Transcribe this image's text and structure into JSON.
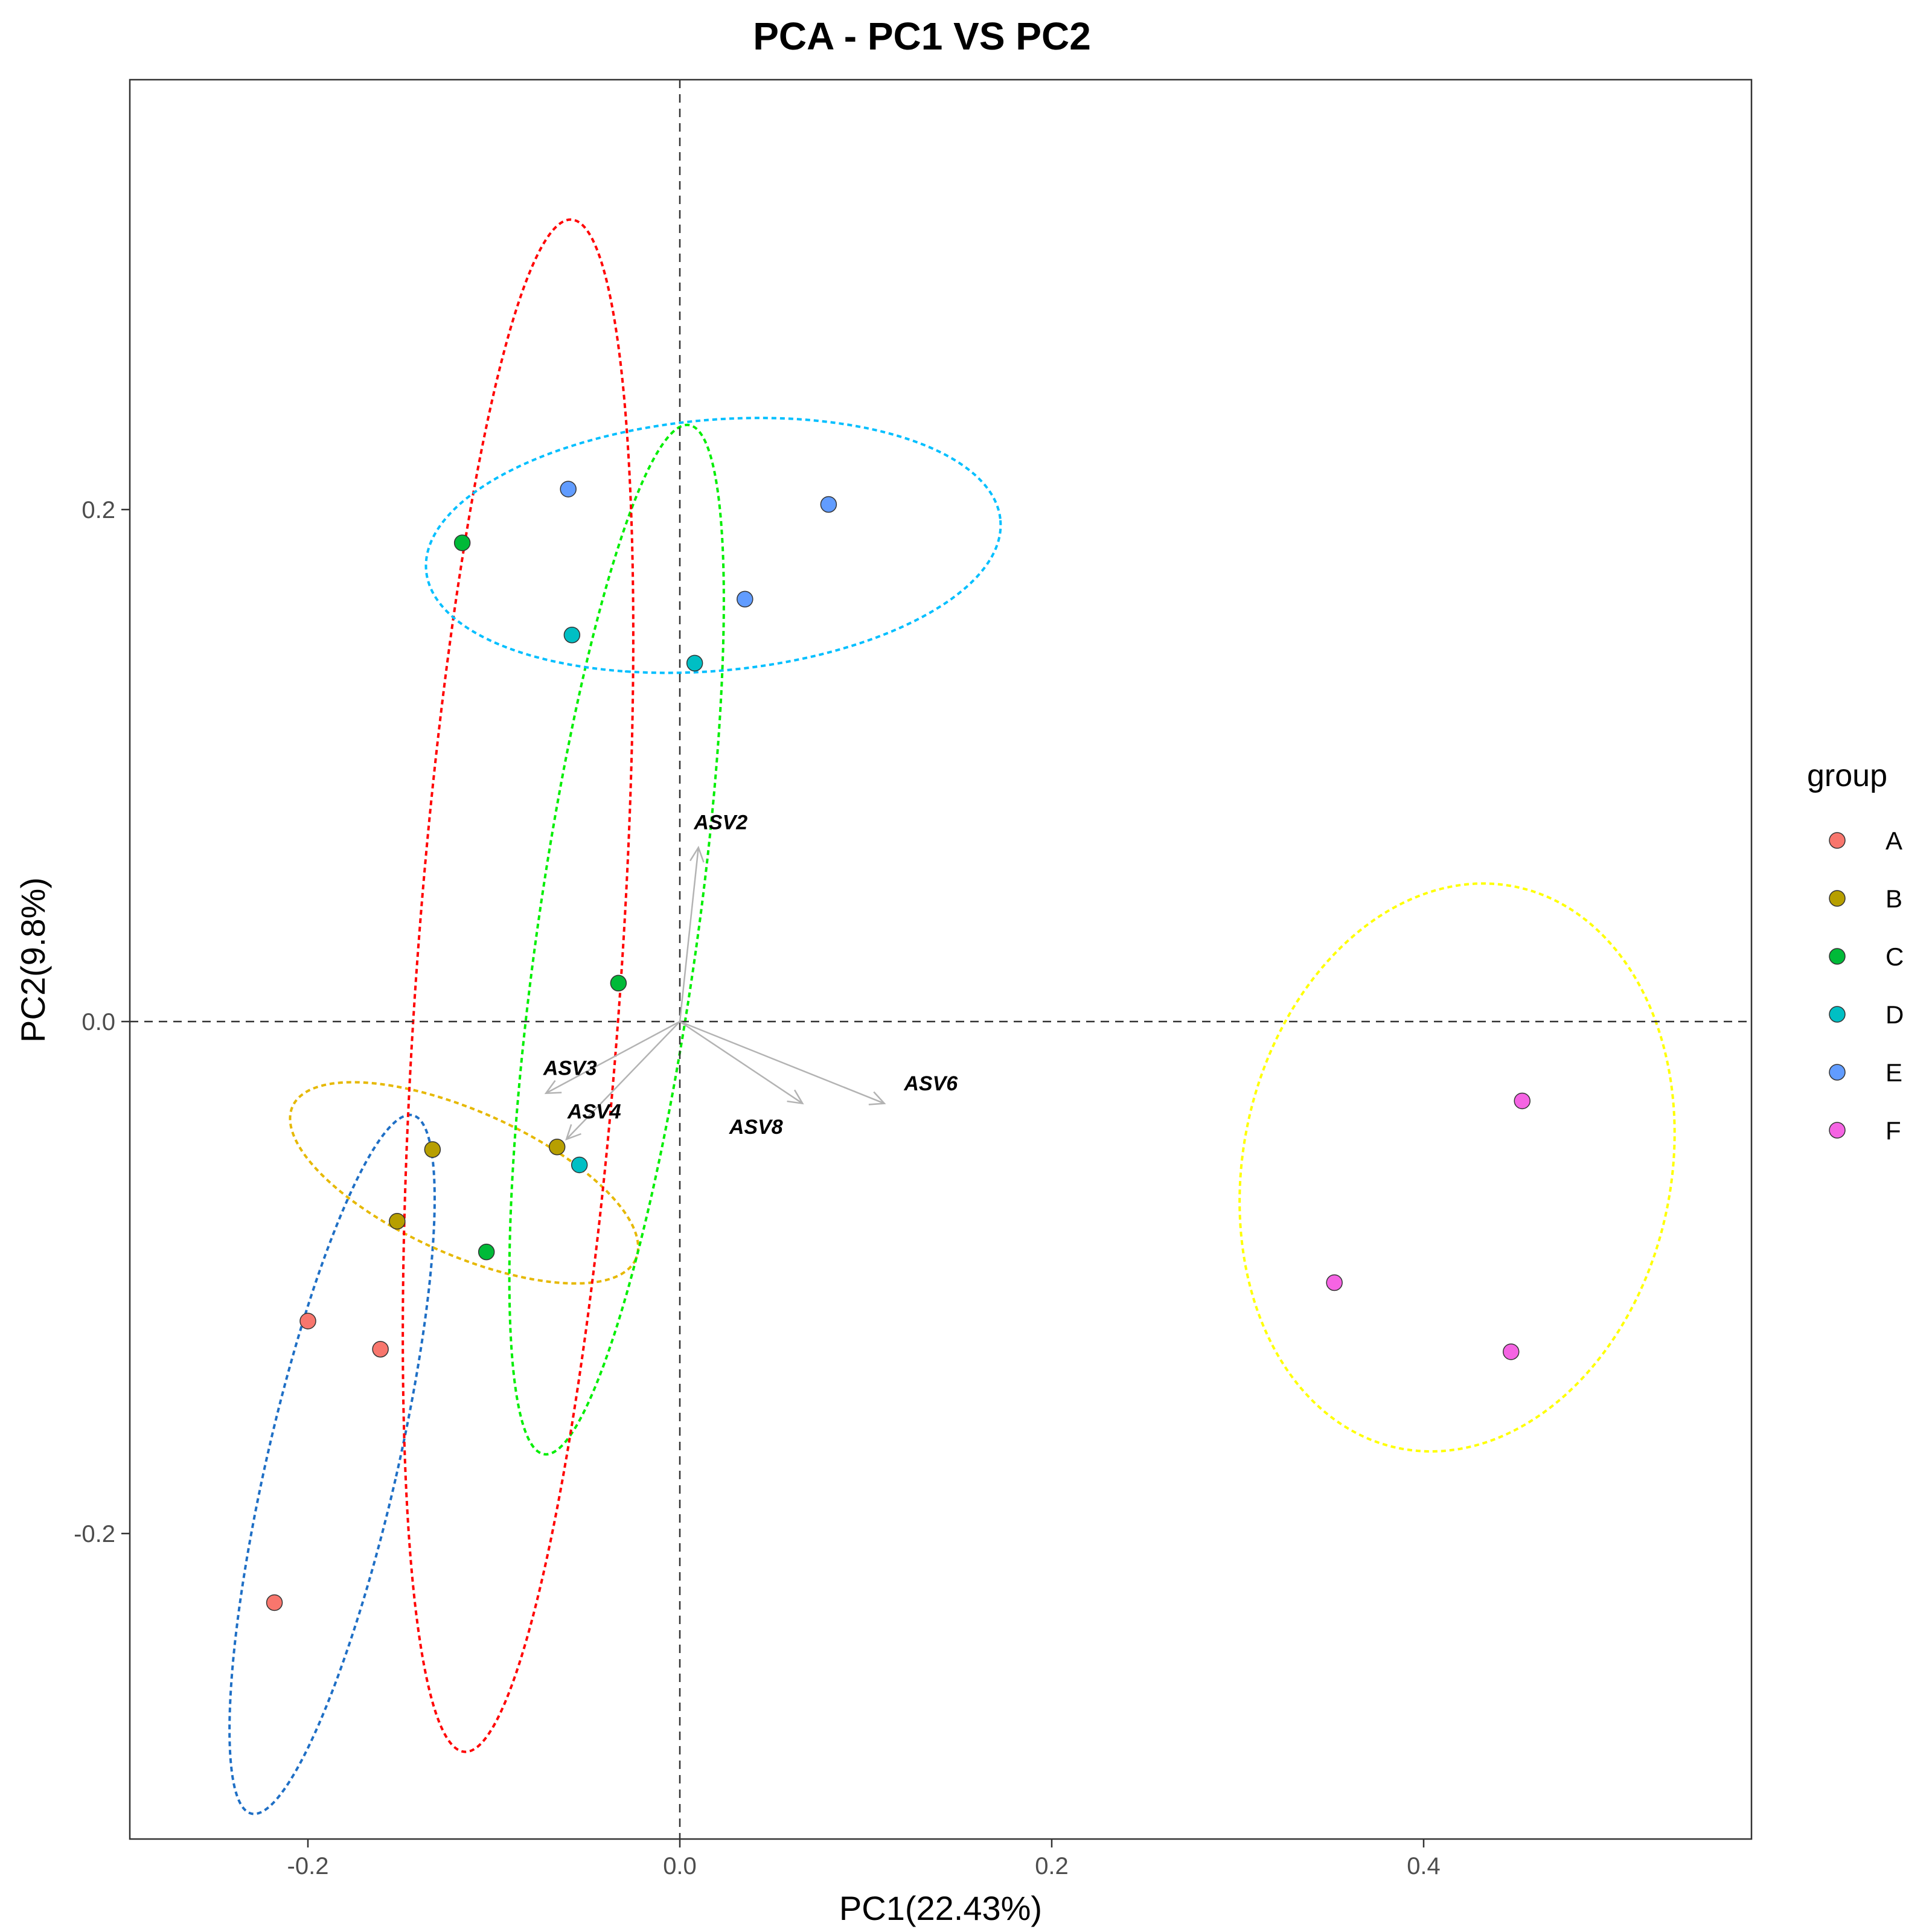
{
  "chart_data": {
    "type": "scatter",
    "title": "PCA - PC1 VS PC2",
    "xlabel": "PC1(22.43%)",
    "ylabel": "PC2(9.8%)",
    "xlim": [
      -0.295,
      0.575
    ],
    "ylim": [
      -0.315,
      0.368
    ],
    "xticks": [
      {
        "value": -0.2,
        "label": "-0.2"
      },
      {
        "value": 0.0,
        "label": "0.0"
      },
      {
        "value": 0.2,
        "label": "0.2"
      },
      {
        "value": 0.4,
        "label": "0.4"
      }
    ],
    "yticks": [
      {
        "value": -0.2,
        "label": "-0.2"
      },
      {
        "value": 0.0,
        "label": "0.0"
      },
      {
        "value": 0.2,
        "label": "0.2"
      }
    ],
    "grid": false,
    "reference_lines": {
      "x": 0,
      "y": 0,
      "style": "dashed"
    },
    "legend": {
      "title": "group",
      "placement": "right"
    },
    "series": [
      {
        "name": "A",
        "color": "#F8766D",
        "points": [
          [
            -0.2,
            -0.117
          ],
          [
            -0.161,
            -0.128
          ],
          [
            -0.218,
            -0.227
          ]
        ],
        "ellipse": {
          "color": "#1F6FC5",
          "cx": -0.187,
          "cy": -0.173,
          "ry": 0.14,
          "rx": 0.035,
          "angle": 13
        }
      },
      {
        "name": "B",
        "color": "#B79F00",
        "points": [
          [
            -0.133,
            -0.05
          ],
          [
            -0.152,
            -0.078
          ],
          [
            -0.066,
            -0.049
          ]
        ],
        "ellipse": {
          "color": "#E6B800",
          "cx": -0.116,
          "cy": -0.063,
          "ry": 0.028,
          "rx": 0.101,
          "angle": 24
        }
      },
      {
        "name": "C",
        "color": "#00BA38",
        "points": [
          [
            -0.117,
            0.187
          ],
          [
            -0.033,
            0.015
          ],
          [
            -0.104,
            -0.09
          ]
        ],
        "ellipse": {
          "color": "#00EE00",
          "cx": -0.034,
          "cy": 0.032,
          "ry": 0.203,
          "rx": 0.043,
          "angle": 8
        }
      },
      {
        "name": "D",
        "color": "#00BFC4",
        "points": [
          [
            -0.058,
            0.151
          ],
          [
            0.008,
            0.14
          ],
          [
            -0.054,
            -0.056
          ]
        ],
        "ellipse": {
          "color": "#FF0000",
          "cx": -0.087,
          "cy": 0.014,
          "ry": 0.3,
          "rx": 0.055,
          "angle": 4
        }
      },
      {
        "name": "E",
        "color": "#619CFF",
        "points": [
          [
            -0.06,
            0.208
          ],
          [
            0.08,
            0.202
          ],
          [
            0.035,
            0.165
          ]
        ],
        "ellipse": {
          "color": "#00BFFF",
          "cx": 0.018,
          "cy": 0.186,
          "ry": 0.049,
          "rx": 0.155,
          "angle": -5
        }
      },
      {
        "name": "F",
        "color": "#F564E3",
        "points": [
          [
            0.352,
            -0.102
          ],
          [
            0.453,
            -0.031
          ],
          [
            0.447,
            -0.129
          ]
        ],
        "ellipse": {
          "color": "#FFFF00",
          "cx": 0.418,
          "cy": -0.057,
          "ry": 0.112,
          "rx": 0.115,
          "angle": 12
        }
      }
    ],
    "loadings": [
      {
        "label": "ASV2",
        "x": 0.01,
        "y": 0.068,
        "label_x": 0.022,
        "label_y": 0.078
      },
      {
        "label": "ASV3",
        "x": -0.072,
        "y": -0.028,
        "label_x": -0.059,
        "label_y": -0.018
      },
      {
        "label": "ASV4",
        "x": -0.061,
        "y": -0.046,
        "label_x": -0.046,
        "label_y": -0.035
      },
      {
        "label": "ASV6",
        "x": 0.11,
        "y": -0.032,
        "label_x": 0.135,
        "label_y": -0.024
      },
      {
        "label": "ASV8",
        "x": 0.066,
        "y": -0.032,
        "label_x": 0.041,
        "label_y": -0.041
      }
    ]
  }
}
